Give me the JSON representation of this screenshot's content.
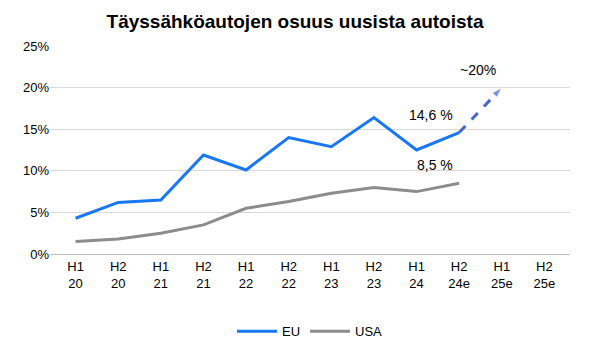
{
  "chart_data": {
    "type": "line",
    "title": "Täyssähköautojen osuus uusista autoista",
    "categories": [
      "H1 20",
      "H2 20",
      "H1 21",
      "H2 21",
      "H1 22",
      "H2 22",
      "H1 23",
      "H2 23",
      "H1 24",
      "H2 24e",
      "H1 25e",
      "H2 25e"
    ],
    "series": [
      {
        "name": "EU",
        "color": "#1877f2",
        "values": [
          4.3,
          6.2,
          6.5,
          11.9,
          10.1,
          14.0,
          12.9,
          16.4,
          12.5,
          14.6,
          null,
          null
        ],
        "value_labels": [
          null,
          null,
          null,
          null,
          null,
          null,
          null,
          null,
          null,
          "14,6 %",
          null,
          null
        ]
      },
      {
        "name": "USA",
        "color": "#8c8c8c",
        "values": [
          1.5,
          1.8,
          2.5,
          3.5,
          5.5,
          6.3,
          7.3,
          8.0,
          7.5,
          8.5,
          null,
          null
        ],
        "value_labels": [
          null,
          null,
          null,
          null,
          null,
          null,
          null,
          null,
          null,
          "8,5 %",
          null,
          null
        ]
      },
      {
        "color": "#4466cc",
        "line_style": "dashed",
        "marker": "arrow",
        "values": [
          null,
          null,
          null,
          null,
          null,
          null,
          null,
          null,
          null,
          14.6,
          20,
          null
        ],
        "value_labels": [
          null,
          null,
          null,
          null,
          null,
          null,
          null,
          null,
          null,
          null,
          "~20%",
          null
        ]
      }
    ],
    "ylim": [
      0,
      25
    ],
    "yticks": [
      {
        "value": 0,
        "label": "0%"
      },
      {
        "value": 5,
        "label": "5%"
      },
      {
        "value": 10,
        "label": "10%"
      },
      {
        "value": 15,
        "label": "15%"
      },
      {
        "value": 20,
        "label": "20%"
      },
      {
        "value": 25,
        "label": "25%"
      }
    ],
    "grid": true,
    "legend": "bottom"
  }
}
